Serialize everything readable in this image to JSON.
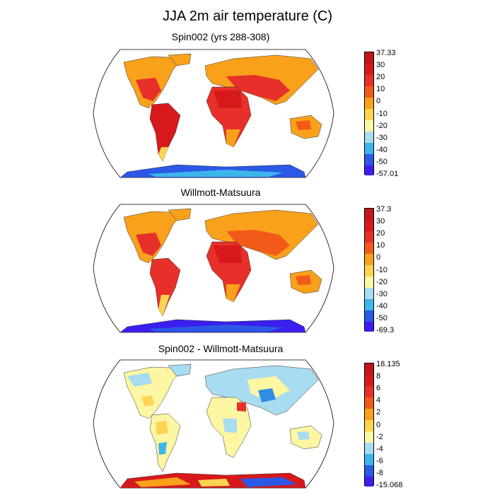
{
  "title": "JJA 2m air temperature (C)",
  "panels": [
    {
      "title": "Spin002 (yrs 288-308)",
      "colorbar": {
        "labels": [
          "37.33",
          "30",
          "20",
          "10",
          "0",
          "-10",
          "-20",
          "-30",
          "-40",
          "-50",
          "-57.01"
        ],
        "colors": [
          "#d7191c",
          "#e8302a",
          "#f25a1a",
          "#f9a11b",
          "#fdd452",
          "#fdf6a3",
          "#a8dcf0",
          "#3cb6ea",
          "#2f8de3",
          "#2c58e6",
          "#3b1ff0"
        ]
      }
    },
    {
      "title": "Willmott-Matsuura",
      "colorbar": {
        "labels": [
          "37.3",
          "30",
          "20",
          "10",
          "0",
          "-10",
          "-20",
          "-30",
          "-40",
          "-50",
          "-69.3"
        ],
        "colors": [
          "#d7191c",
          "#e8302a",
          "#f25a1a",
          "#f9a11b",
          "#fdd452",
          "#fdf6a3",
          "#a8dcf0",
          "#3cb6ea",
          "#2f8de3",
          "#2c58e6",
          "#3b1ff0"
        ]
      }
    },
    {
      "title": "Spin002 - Willmott-Matsuura",
      "colorbar": {
        "labels": [
          "18.135",
          "8",
          "6",
          "4",
          "2",
          "0",
          "-2",
          "-4",
          "-6",
          "-8",
          "-15.068"
        ],
        "colors": [
          "#d7191c",
          "#e8302a",
          "#f25a1a",
          "#f9a11b",
          "#fdd452",
          "#fdf6a3",
          "#a8dcf0",
          "#3cb6ea",
          "#2f8de3",
          "#2c58e6",
          "#3b1ff0"
        ]
      }
    }
  ]
}
